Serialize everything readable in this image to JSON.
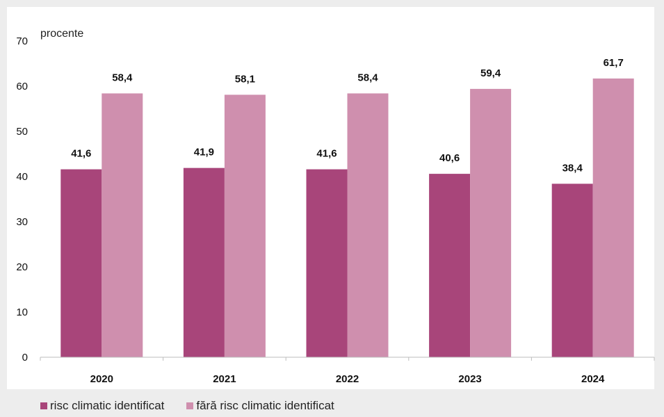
{
  "chart_data": {
    "type": "bar",
    "categories": [
      "2020",
      "2021",
      "2022",
      "2023",
      "2024"
    ],
    "series": [
      {
        "name": "risc climatic identificat",
        "values": [
          41.6,
          41.9,
          41.6,
          40.6,
          38.4
        ],
        "color": "#a8457a"
      },
      {
        "name": "fără risc climatic identificat",
        "values": [
          58.4,
          58.1,
          58.4,
          59.4,
          61.7
        ],
        "color": "#cf8fae"
      }
    ],
    "value_labels_s1": [
      "41,6",
      "41,9",
      "41,6",
      "40,6",
      "38,4"
    ],
    "value_labels_s2": [
      "58,4",
      "58,1",
      "58,4",
      "59,4",
      "61,7"
    ],
    "yticks": [
      "0",
      "10",
      "20",
      "30",
      "40",
      "50",
      "60",
      "70"
    ],
    "ylim": [
      0,
      70
    ],
    "ylabel": "procente",
    "title": "",
    "xlabel": "",
    "grid": false,
    "legend_position": "bottom-left",
    "background": "#ffffff"
  }
}
